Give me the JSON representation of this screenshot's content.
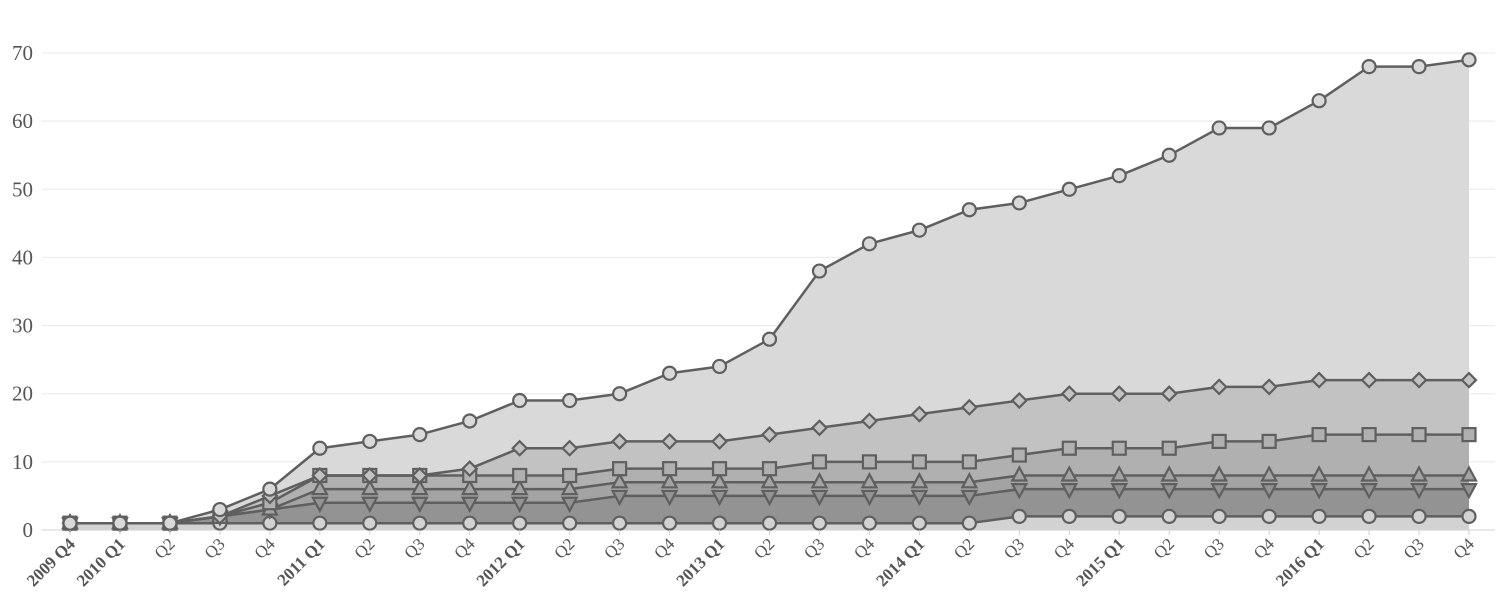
{
  "chart_data": {
    "type": "area",
    "title": "",
    "xlabel": "",
    "ylabel": "",
    "ylim": [
      0,
      70
    ],
    "yticks": [
      0,
      10,
      20,
      30,
      40,
      50,
      60,
      70
    ],
    "grid": true,
    "categories": [
      "2009 Q4",
      "2010 Q1",
      "Q2",
      "Q3",
      "Q4",
      "2011 Q1",
      "Q2",
      "Q3",
      "Q4",
      "2012 Q1",
      "Q2",
      "Q3",
      "Q4",
      "2013 Q1",
      "Q2",
      "Q3",
      "Q4",
      "2014 Q1",
      "Q2",
      "Q3",
      "Q4",
      "2015 Q1",
      "Q2",
      "Q3",
      "Q4",
      "2016 Q1",
      "Q2",
      "Q3",
      "Q4"
    ],
    "series": [
      {
        "marker": "circle",
        "fill": "#d9d9d9",
        "values": [
          1,
          1,
          1,
          3,
          6,
          12,
          13,
          14,
          16,
          19,
          19,
          20,
          23,
          24,
          28,
          38,
          42,
          44,
          47,
          48,
          50,
          52,
          55,
          59,
          59,
          63,
          68,
          68,
          69
        ]
      },
      {
        "marker": "diamond",
        "fill": "#c2c2c2",
        "values": [
          1,
          1,
          1,
          2,
          5,
          8,
          8,
          8,
          9,
          12,
          12,
          13,
          13,
          13,
          14,
          15,
          16,
          17,
          18,
          19,
          20,
          20,
          20,
          21,
          21,
          22,
          22,
          22,
          22
        ]
      },
      {
        "marker": "square",
        "fill": "#b0b0b0",
        "values": [
          1,
          1,
          1,
          2,
          4,
          8,
          8,
          8,
          8,
          8,
          8,
          9,
          9,
          9,
          9,
          10,
          10,
          10,
          10,
          11,
          12,
          12,
          12,
          13,
          13,
          14,
          14,
          14,
          14
        ]
      },
      {
        "marker": "triangle-up",
        "fill": "#a3a3a3",
        "values": [
          1,
          1,
          1,
          2,
          3,
          6,
          6,
          6,
          6,
          6,
          6,
          7,
          7,
          7,
          7,
          7,
          7,
          7,
          7,
          8,
          8,
          8,
          8,
          8,
          8,
          8,
          8,
          8,
          8
        ]
      },
      {
        "marker": "triangle-down",
        "fill": "#939393",
        "values": [
          1,
          1,
          1,
          2,
          3,
          4,
          4,
          4,
          4,
          4,
          4,
          5,
          5,
          5,
          5,
          5,
          5,
          5,
          5,
          6,
          6,
          6,
          6,
          6,
          6,
          6,
          6,
          6,
          6
        ]
      },
      {
        "marker": "circle",
        "fill": "#d2d2d2",
        "values": [
          1,
          1,
          1,
          1,
          1,
          1,
          1,
          1,
          1,
          1,
          1,
          1,
          1,
          1,
          1,
          1,
          1,
          1,
          1,
          2,
          2,
          2,
          2,
          2,
          2,
          2,
          2,
          2,
          2
        ]
      }
    ]
  }
}
